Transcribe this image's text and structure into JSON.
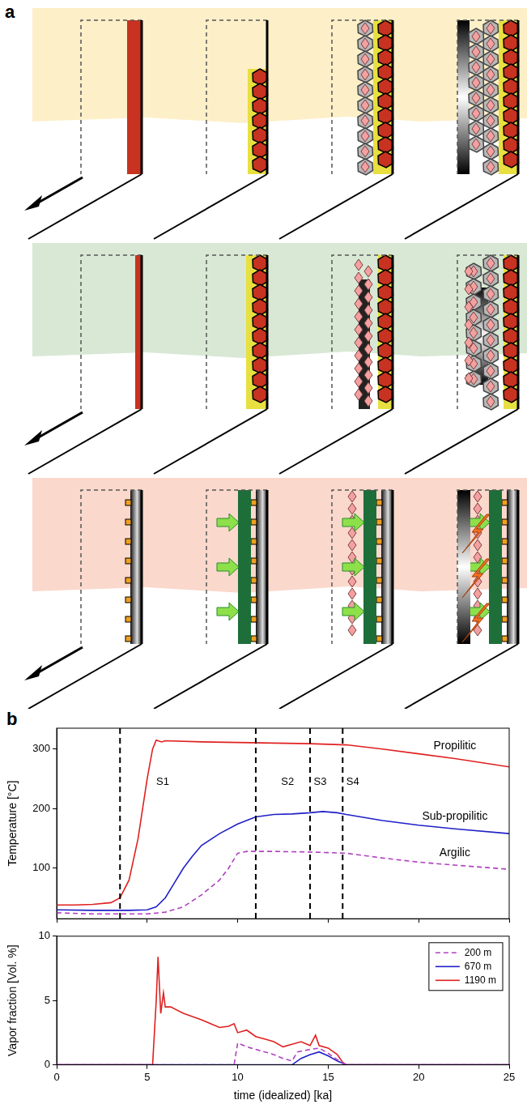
{
  "panel_labels": [
    "a",
    "b"
  ],
  "chart_data": [
    {
      "type": "line",
      "y_label": "Temperature [°C]",
      "xlim": [
        0,
        25
      ],
      "xticks": [
        0,
        5,
        10,
        15,
        20,
        25
      ],
      "ylim": [
        15,
        335
      ],
      "yticks": [
        100,
        200,
        300
      ],
      "tick_labels": "y",
      "grid": false,
      "vertical_lines": [
        3.5,
        11,
        14,
        15.8
      ],
      "annotations": [
        {
          "text": "S1",
          "x": 5.5,
          "y": 245
        },
        {
          "text": "S2",
          "x": 12.4,
          "y": 245
        },
        {
          "text": "S3",
          "x": 14.2,
          "y": 245
        },
        {
          "text": "S4",
          "x": 16.0,
          "y": 245
        }
      ],
      "series": [
        {
          "name": "Propilitic",
          "color": "#e02020",
          "line_style": "solid",
          "x": [
            0,
            1,
            2,
            3,
            3.5,
            4,
            4.5,
            5,
            5.3,
            5.5,
            5.8,
            6,
            8,
            10,
            12,
            14,
            16,
            18,
            20,
            22,
            25
          ],
          "values": [
            38,
            38,
            39,
            42,
            50,
            80,
            150,
            250,
            300,
            315,
            312,
            314,
            312,
            311,
            310,
            309,
            307,
            300,
            292,
            284,
            270
          ]
        },
        {
          "name": "Sub-propilitic",
          "color": "#2020c8",
          "line_style": "solid",
          "x": [
            0,
            2,
            4,
            5,
            5.5,
            6,
            6.5,
            7,
            7.5,
            8,
            9,
            10,
            11,
            12,
            13,
            14,
            14.7,
            15.5,
            16,
            18,
            20,
            22,
            25
          ],
          "values": [
            30,
            29,
            29,
            30,
            35,
            50,
            75,
            100,
            120,
            138,
            158,
            174,
            186,
            190,
            191,
            193,
            195,
            193,
            190,
            180,
            172,
            166,
            158
          ]
        },
        {
          "name": "Argilic",
          "color": "#b040c0",
          "line_style": "dashed",
          "x": [
            0,
            2,
            4,
            5,
            6,
            7,
            8,
            9,
            9.5,
            10,
            10.5,
            12,
            14,
            16,
            18,
            20,
            22,
            25
          ],
          "values": [
            25,
            23,
            23,
            23,
            26,
            35,
            55,
            80,
            100,
            125,
            128,
            128,
            127,
            125,
            117,
            110,
            105,
            98
          ]
        }
      ]
    },
    {
      "type": "line",
      "x_label": "time (idealized) [ka]",
      "y_label": "Vapor fraction [Vol. %]",
      "xlim": [
        0,
        25
      ],
      "xticks": [
        0,
        5,
        10,
        15,
        20,
        25
      ],
      "ylim": [
        0,
        10
      ],
      "yticks": [
        0,
        5,
        10
      ],
      "grid": false,
      "legend": "upper right",
      "series": [
        {
          "name": "200 m",
          "color": "#b040c0",
          "line_style": "dashed",
          "x": [
            0,
            9.8,
            10,
            10.5,
            11,
            12,
            12.5,
            13,
            13.3,
            14,
            14.5,
            15,
            15.5,
            16,
            25
          ],
          "values": [
            0,
            0,
            1.7,
            1.4,
            1.2,
            0.8,
            0.5,
            0.3,
            1.0,
            1.2,
            1.3,
            0.9,
            0.4,
            0,
            0
          ]
        },
        {
          "name": "670 m",
          "color": "#2020c8",
          "line_style": "solid",
          "x": [
            0,
            13,
            13.5,
            14,
            14.5,
            15,
            15.5,
            16,
            25
          ],
          "values": [
            0,
            0,
            0.5,
            0.8,
            1.0,
            0.7,
            0.3,
            0,
            0
          ]
        },
        {
          "name": "1190 m",
          "color": "#e02020",
          "line_style": "solid",
          "x": [
            0,
            5.2,
            5.3,
            5.5,
            5.6,
            5.75,
            5.9,
            6,
            6.3,
            7,
            8,
            8.5,
            9,
            9.5,
            9.8,
            10,
            10.5,
            11,
            11.5,
            12,
            12.5,
            13,
            13.5,
            14,
            14.3,
            14.5,
            15,
            15.5,
            15.8,
            16,
            25
          ],
          "values": [
            0,
            0,
            0,
            5,
            8.4,
            4,
            5.6,
            4.5,
            4.5,
            4.0,
            3.5,
            3.2,
            2.9,
            3.0,
            3.2,
            2.5,
            2.7,
            2.2,
            2.0,
            1.8,
            1.4,
            1.6,
            1.8,
            1.5,
            2.3,
            1.5,
            1.3,
            0.8,
            0.2,
            0,
            0
          ]
        }
      ]
    }
  ]
}
